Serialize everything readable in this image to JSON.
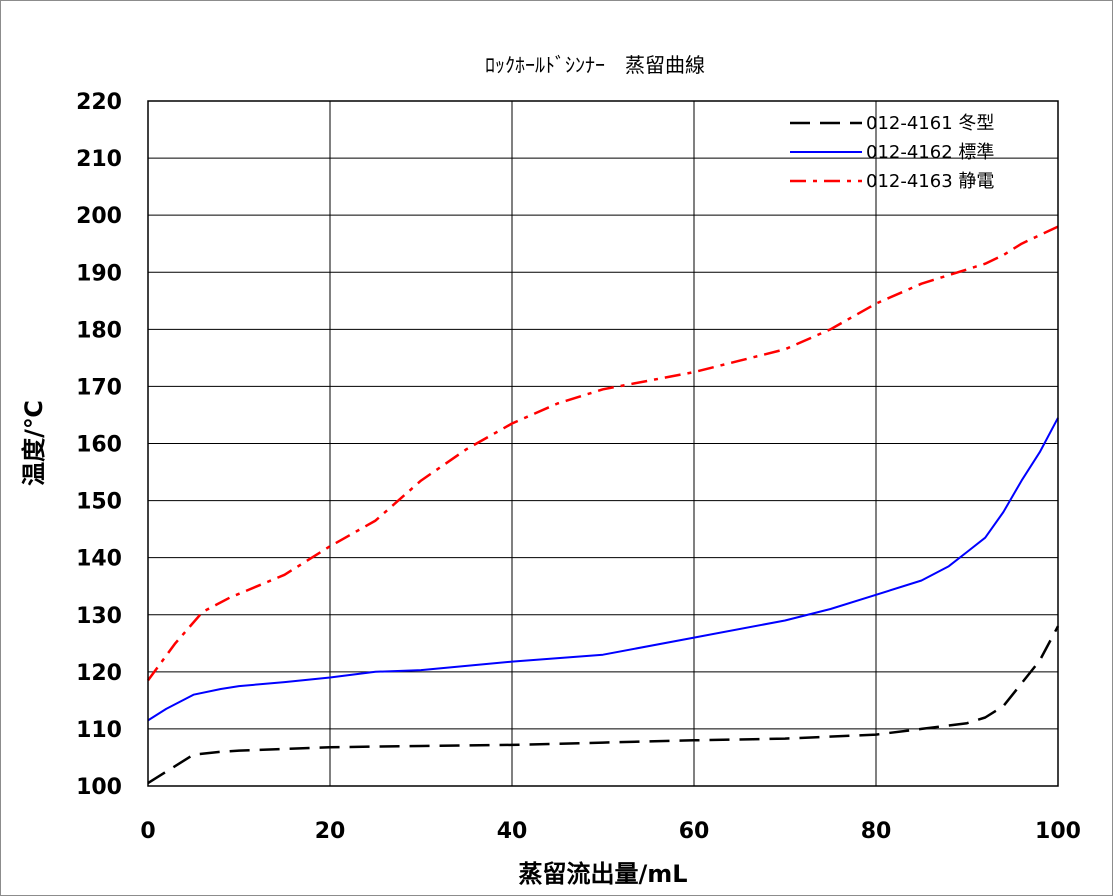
{
  "chart_data": {
    "type": "line",
    "title": "ﾛｯｸﾎｰﾙﾄﾞｼﾝﾅｰ　蒸留曲線",
    "xlabel": "蒸留流出量/mL",
    "ylabel": "温度/℃",
    "xlim": [
      0,
      100
    ],
    "ylim": [
      100,
      220
    ],
    "xticks": [
      "0",
      "20",
      "40",
      "60",
      "80",
      "100"
    ],
    "yticks": [
      "100",
      "110",
      "120",
      "130",
      "140",
      "150",
      "160",
      "170",
      "180",
      "190",
      "200",
      "210",
      "220"
    ],
    "grid": true,
    "legend_position": "top-right",
    "series": [
      {
        "name": "012-4161 冬型",
        "color": "#000000",
        "style": "dashed",
        "x": [
          0,
          2,
          5,
          8,
          10,
          15,
          20,
          30,
          40,
          50,
          60,
          70,
          80,
          85,
          90,
          92,
          94,
          96,
          98,
          100
        ],
        "y": [
          100.5,
          102.5,
          105.5,
          106,
          106.2,
          106.5,
          106.8,
          107,
          107.2,
          107.6,
          108,
          108.3,
          109,
          110,
          111,
          112,
          114,
          118,
          122,
          128
        ]
      },
      {
        "name": "012-4162 標準",
        "color": "#0000ff",
        "style": "solid",
        "x": [
          0,
          2,
          5,
          8,
          10,
          15,
          20,
          25,
          30,
          40,
          50,
          60,
          70,
          75,
          80,
          85,
          88,
          90,
          92,
          94,
          96,
          98,
          100
        ],
        "y": [
          111.5,
          113.5,
          116,
          117,
          117.5,
          118.2,
          119,
          120,
          120.3,
          121.8,
          123,
          126,
          129,
          131,
          133.5,
          136,
          138.5,
          141,
          143.5,
          148,
          153.5,
          158.5,
          164.5
        ]
      },
      {
        "name": "012-4163 静電",
        "color": "#ff0000",
        "style": "dash-dot",
        "x": [
          0,
          3,
          6,
          9,
          12,
          15,
          20,
          25,
          30,
          35,
          40,
          45,
          50,
          55,
          60,
          65,
          70,
          75,
          80,
          85,
          90,
          92,
          94,
          96,
          98,
          100
        ],
        "y": [
          118.5,
          125,
          130.5,
          133,
          135,
          137,
          142,
          146.5,
          153.5,
          159,
          163.5,
          167,
          169.5,
          171,
          172.5,
          174.5,
          176.5,
          180,
          184.5,
          188,
          190.5,
          191.5,
          193,
          195,
          196.5,
          198
        ]
      }
    ]
  }
}
